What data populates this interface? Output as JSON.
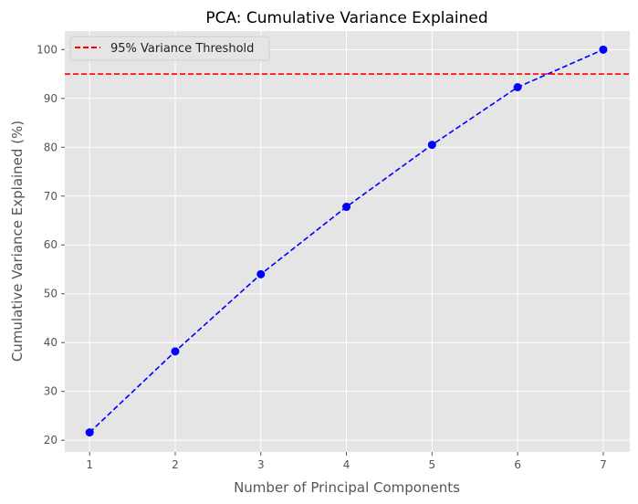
{
  "chart_data": {
    "type": "line",
    "title": "PCA: Cumulative Variance Explained",
    "xlabel": "Number of Principal Components",
    "ylabel": "Cumulative Variance Explained (%)",
    "x": [
      1,
      2,
      3,
      4,
      5,
      6,
      7
    ],
    "series": [
      {
        "values": [
          21.6,
          38.2,
          54.0,
          67.8,
          80.5,
          92.3,
          100.0
        ],
        "color": "#0000ff",
        "linestyle": "dashed",
        "marker": "circle"
      }
    ],
    "threshold": {
      "name": "95% Variance Threshold",
      "value": 95,
      "color": "#ff0000",
      "linestyle": "dashed"
    },
    "xlim": [
      0.71,
      7.31
    ],
    "ylim": [
      17.6,
      103.8
    ],
    "xticks": [
      "1",
      "2",
      "3",
      "4",
      "5",
      "6",
      "7"
    ],
    "yticks": [
      "20",
      "30",
      "40",
      "50",
      "60",
      "70",
      "80",
      "90",
      "100"
    ],
    "grid": true,
    "legend": "top-left",
    "background": "#e5e5e5"
  }
}
